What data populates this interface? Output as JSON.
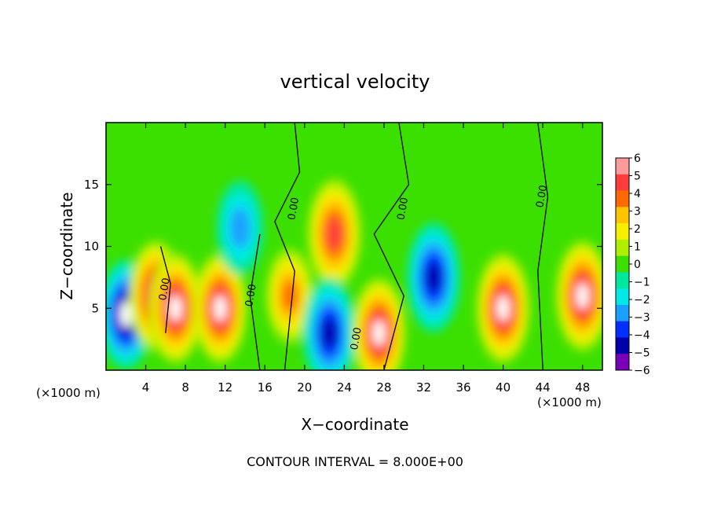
{
  "chart_data": {
    "type": "heatmap",
    "title": "vertical velocity",
    "xlabel": "X−coordinate",
    "ylabel": "Z−coordinate",
    "x_unit_left": "(×1000 m)",
    "x_unit_right": "(×1000 m)",
    "footer": "CONTOUR INTERVAL = 8.000E+00",
    "xlim": [
      0,
      50
    ],
    "ylim": [
      0,
      20
    ],
    "x_ticks": [
      "4",
      "8",
      "12",
      "16",
      "20",
      "24",
      "28",
      "32",
      "36",
      "40",
      "44",
      "48"
    ],
    "y_ticks": [
      "5",
      "10",
      "15"
    ],
    "contour_label": "0.00",
    "colorbar": {
      "labels": [
        "6",
        "5",
        "4",
        "3",
        "2",
        "1",
        "0",
        "−1",
        "−2",
        "−3",
        "−4",
        "−5",
        "−6"
      ],
      "colors": [
        "#ff9a9a",
        "#ff3c3c",
        "#ff6a00",
        "#ffc400",
        "#f5f000",
        "#aef000",
        "#3ce000",
        "#00e8a0",
        "#00e8e8",
        "#1aa0ff",
        "#0030ff",
        "#0000a8",
        "#7a00b8"
      ],
      "over_color": "#ffffff"
    },
    "features": [
      {
        "x": 2.0,
        "z": 4.5,
        "w": -6
      },
      {
        "x": 5.0,
        "z": 6.0,
        "w": 6
      },
      {
        "x": 7.0,
        "z": 5.0,
        "w": 6
      },
      {
        "x": 11.5,
        "z": 5.0,
        "w": 6
      },
      {
        "x": 13.5,
        "z": 11.5,
        "w": -3
      },
      {
        "x": 18.5,
        "z": 6.0,
        "w": 4
      },
      {
        "x": 23.0,
        "z": 11.0,
        "w": 5
      },
      {
        "x": 22.5,
        "z": 3.0,
        "w": -5
      },
      {
        "x": 27.5,
        "z": 3.0,
        "w": 6
      },
      {
        "x": 33.0,
        "z": 7.5,
        "w": -5
      },
      {
        "x": 40.0,
        "z": 5.0,
        "w": 6
      },
      {
        "x": 48.0,
        "z": 6.0,
        "w": 6
      }
    ]
  }
}
